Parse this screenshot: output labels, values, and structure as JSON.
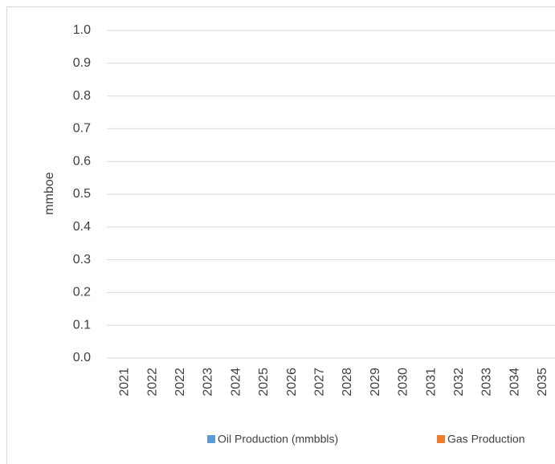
{
  "chart_data": {
    "type": "bar",
    "stacked": true,
    "y_label": "mmboe",
    "categories": [
      "2021",
      "2022",
      "2022",
      "2023",
      "2024",
      "2025",
      "2026",
      "2027",
      "2028",
      "2029",
      "2030",
      "2031",
      "2032",
      "2033",
      "2034",
      "2035"
    ],
    "series": [
      {
        "name": "Oil Production (mmbbls)",
        "color": "#5b9bd5",
        "values": [
          0,
          0,
          0,
          0,
          0,
          0,
          0,
          0,
          0,
          0,
          0,
          0,
          0,
          0,
          0,
          0
        ]
      },
      {
        "name": "Gas Production",
        "color": "#ed7d31",
        "values": [
          0,
          0,
          0,
          0,
          0,
          0,
          0,
          0,
          0,
          0,
          0,
          0,
          0,
          0,
          0,
          0
        ]
      }
    ],
    "ylim": [
      0,
      1
    ],
    "yticks": [
      {
        "value": 0,
        "label": "0.0"
      },
      0.1,
      0.2,
      0.3,
      0.4,
      0.5,
      0.6,
      0.7,
      0.8,
      0.9,
      {
        "value": 1,
        "label": "1.0"
      }
    ],
    "grid": true,
    "legend": "bottom"
  }
}
